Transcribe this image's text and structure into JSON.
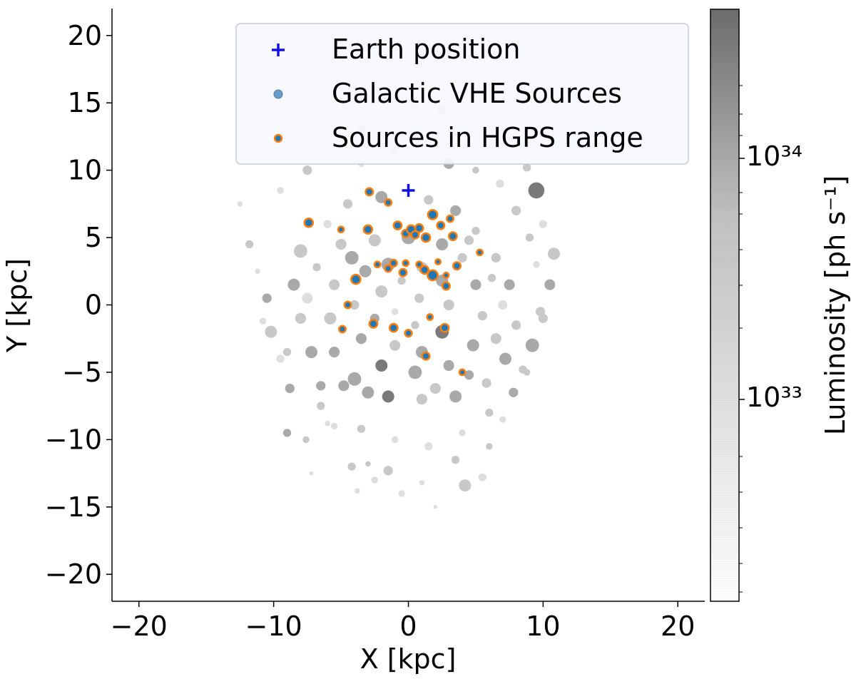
{
  "chart_data": {
    "type": "scatter",
    "xlabel": "X [kpc]",
    "ylabel": "Y [kpc]",
    "xlim": [
      -22,
      22
    ],
    "ylim": [
      -22,
      22
    ],
    "x_ticks": [
      -20,
      -10,
      0,
      10,
      20
    ],
    "y_ticks": [
      -20,
      -15,
      -10,
      -5,
      0,
      5,
      10,
      15,
      20
    ],
    "x_tick_labels": [
      "−20",
      "−10",
      "0",
      "10",
      "20"
    ],
    "y_tick_labels": [
      "−20",
      "−15",
      "−10",
      "−5",
      "0",
      "5",
      "10",
      "15",
      "20"
    ],
    "grid": false,
    "legend_position": "top-center",
    "legend": [
      {
        "label": "Earth position",
        "marker": "plus",
        "color": "#1010e0"
      },
      {
        "label": "Galactic VHE Sources",
        "marker": "circle",
        "color": "#6a9cc8"
      },
      {
        "label": "Sources in HGPS range",
        "marker": "circle-outlined",
        "color": "#1f77b4",
        "edge_color": "#ff7f0e"
      }
    ],
    "colorbar": {
      "label": "Luminosity [ph s⁻¹]",
      "scale": "log",
      "range": [
        2e+32,
        5e+34
      ],
      "tick_labels": [
        "10³³",
        "10³⁴"
      ],
      "colormap": "Greys"
    },
    "series": [
      {
        "name": "Earth position",
        "points": [
          [
            0,
            8.5
          ]
        ]
      },
      {
        "name": "Galactic VHE Sources",
        "points": [
          [
            -12.5,
            7.5,
            0.2,
            1
          ],
          [
            -11.8,
            4.5,
            0.3,
            2
          ],
          [
            -11.2,
            2.5,
            0.2,
            1
          ],
          [
            -10.5,
            0.5,
            0.35,
            3
          ],
          [
            -10.2,
            -2.0,
            0.45,
            2
          ],
          [
            -9.5,
            -4.0,
            0.3,
            1
          ],
          [
            -8.8,
            -6.2,
            0.35,
            3
          ],
          [
            -9.0,
            -9.5,
            0.3,
            3
          ],
          [
            -7.6,
            -10.0,
            0.25,
            2
          ],
          [
            -7.2,
            -12.5,
            0.15,
            1
          ],
          [
            -6.5,
            -7.5,
            0.3,
            2
          ],
          [
            -5.5,
            -9.0,
            0.25,
            1
          ],
          [
            -4.8,
            -6.0,
            0.4,
            3
          ],
          [
            -4.2,
            -12.0,
            0.3,
            2
          ],
          [
            -3.8,
            -13.8,
            0.2,
            1
          ],
          [
            -3.0,
            -11.8,
            0.2,
            2
          ],
          [
            -2.5,
            -13.0,
            0.25,
            1
          ],
          [
            -1.5,
            -12.3,
            0.35,
            2
          ],
          [
            -0.5,
            -14.0,
            0.25,
            1
          ],
          [
            1.0,
            -13.2,
            0.2,
            1
          ],
          [
            2.0,
            -15.0,
            0.15,
            1
          ],
          [
            3.5,
            -11.5,
            0.3,
            2
          ],
          [
            4.2,
            -13.4,
            0.45,
            2
          ],
          [
            5.5,
            -12.8,
            0.3,
            1
          ],
          [
            6.0,
            -10.5,
            0.25,
            2
          ],
          [
            7.0,
            -8.5,
            0.25,
            1
          ],
          [
            7.8,
            -6.5,
            0.35,
            3
          ],
          [
            8.5,
            -4.8,
            0.3,
            2
          ],
          [
            9.2,
            -3.0,
            0.5,
            3
          ],
          [
            10.0,
            -1.0,
            0.35,
            2
          ],
          [
            10.5,
            1.5,
            0.4,
            3
          ],
          [
            10.8,
            3.8,
            0.45,
            2
          ],
          [
            10.0,
            6.0,
            0.3,
            1
          ],
          [
            9.5,
            8.5,
            0.6,
            4
          ],
          [
            8.8,
            10.2,
            0.3,
            2
          ],
          [
            7.5,
            11.5,
            0.25,
            1
          ],
          [
            6.0,
            12.5,
            0.3,
            1
          ],
          [
            4.0,
            13.5,
            0.2,
            1
          ],
          [
            2.5,
            14.5,
            0.35,
            2
          ],
          [
            0.5,
            14.8,
            0.3,
            1
          ],
          [
            -1.5,
            14.2,
            0.25,
            1
          ],
          [
            -3.5,
            13.0,
            0.3,
            2
          ],
          [
            -5.5,
            11.5,
            0.2,
            1
          ],
          [
            -7.5,
            10.0,
            0.35,
            2
          ],
          [
            -9.5,
            8.5,
            0.25,
            1
          ],
          [
            -8.0,
            4.0,
            0.5,
            2
          ],
          [
            -8.5,
            1.5,
            0.45,
            3
          ],
          [
            -8.0,
            -1.0,
            0.4,
            2
          ],
          [
            -7.2,
            -3.5,
            0.45,
            3
          ],
          [
            -6.0,
            6.0,
            0.3,
            1
          ],
          [
            -4.5,
            7.5,
            0.35,
            2
          ],
          [
            -2.0,
            8.0,
            0.45,
            3
          ],
          [
            1.5,
            7.8,
            0.35,
            2
          ],
          [
            3.5,
            7.0,
            0.4,
            3
          ],
          [
            5.0,
            5.5,
            0.3,
            2
          ],
          [
            6.5,
            3.5,
            0.35,
            2
          ],
          [
            7.5,
            1.5,
            0.4,
            3
          ],
          [
            8.0,
            -1.5,
            0.35,
            2
          ],
          [
            7.2,
            -4.0,
            0.45,
            3
          ],
          [
            5.8,
            -5.8,
            0.35,
            2
          ],
          [
            3.5,
            -6.8,
            0.45,
            3
          ],
          [
            1.0,
            -7.0,
            0.4,
            2
          ],
          [
            -1.5,
            -6.8,
            0.45,
            4
          ],
          [
            -4.0,
            -5.5,
            0.5,
            3
          ],
          [
            -5.5,
            -3.5,
            0.4,
            3
          ],
          [
            -5.8,
            -1.0,
            0.45,
            2
          ],
          [
            -5.5,
            1.5,
            0.4,
            2
          ],
          [
            -4.2,
            3.5,
            0.5,
            3
          ],
          [
            -2.5,
            4.8,
            0.45,
            2
          ],
          [
            0.0,
            5.0,
            0.5,
            3
          ],
          [
            2.5,
            4.5,
            0.45,
            3
          ],
          [
            4.0,
            3.5,
            0.35,
            2
          ],
          [
            5.0,
            1.5,
            0.4,
            3
          ],
          [
            5.5,
            -0.8,
            0.35,
            2
          ],
          [
            4.8,
            -3.0,
            0.45,
            3
          ],
          [
            3.0,
            -4.5,
            0.4,
            3
          ],
          [
            0.5,
            -5.0,
            0.5,
            3
          ],
          [
            -2.0,
            -4.5,
            0.45,
            4
          ],
          [
            -3.5,
            -2.5,
            0.4,
            3
          ],
          [
            -4.0,
            0.0,
            0.35,
            2
          ],
          [
            -3.2,
            2.5,
            0.45,
            3
          ],
          [
            -1.5,
            3.0,
            0.5,
            3
          ],
          [
            1.0,
            2.8,
            0.4,
            2
          ],
          [
            2.5,
            1.8,
            0.45,
            3
          ],
          [
            3.0,
            0.0,
            0.4,
            2
          ],
          [
            2.5,
            -2.0,
            0.5,
            4
          ],
          [
            1.0,
            -3.5,
            0.45,
            3
          ],
          [
            -1.0,
            -3.0,
            0.4,
            2
          ],
          [
            -2.5,
            -1.0,
            0.35,
            3
          ],
          [
            -2.0,
            1.0,
            0.45,
            2
          ],
          [
            -0.5,
            1.8,
            0.3,
            2
          ],
          [
            0.8,
            0.5,
            0.35,
            2
          ],
          [
            0.5,
            -1.5,
            0.3,
            2
          ],
          [
            -1.0,
            -0.5,
            0.25,
            1
          ],
          [
            -6.5,
            -6.0,
            0.35,
            3
          ],
          [
            -5.0,
            4.5,
            0.4,
            2
          ],
          [
            -3.0,
            -6.5,
            0.45,
            3
          ],
          [
            2.0,
            -6.2,
            0.4,
            2
          ],
          [
            4.5,
            -5.2,
            0.35,
            3
          ],
          [
            6.5,
            -2.5,
            0.4,
            2
          ],
          [
            7.0,
            0.0,
            0.35,
            1
          ],
          [
            6.2,
            2.0,
            0.3,
            2
          ],
          [
            4.5,
            4.8,
            0.35,
            2
          ],
          [
            -6.8,
            2.8,
            0.3,
            2
          ],
          [
            -7.5,
            0.5,
            0.4,
            1
          ],
          [
            -9.0,
            -3.5,
            0.3,
            2
          ],
          [
            -10.8,
            -1.2,
            0.25,
            1
          ],
          [
            -3.5,
            10.5,
            0.25,
            1
          ],
          [
            -1.0,
            11.5,
            0.3,
            2
          ],
          [
            1.5,
            12.0,
            0.35,
            1
          ],
          [
            3.0,
            10.5,
            0.4,
            3
          ],
          [
            5.0,
            10.0,
            0.25,
            2
          ],
          [
            6.8,
            9.0,
            0.3,
            1
          ],
          [
            8.0,
            7.0,
            0.35,
            2
          ],
          [
            9.0,
            5.0,
            0.3,
            2
          ],
          [
            9.5,
            3.0,
            0.25,
            1
          ],
          [
            9.8,
            -0.5,
            0.35,
            2
          ],
          [
            9.2,
            -2.8,
            0.3,
            3
          ],
          [
            8.8,
            -5.0,
            0.25,
            2
          ],
          [
            6.0,
            -8.0,
            0.3,
            2
          ],
          [
            4.0,
            -9.5,
            0.25,
            1
          ],
          [
            1.5,
            -10.5,
            0.3,
            1
          ],
          [
            -1.0,
            -10.0,
            0.25,
            1
          ],
          [
            -3.5,
            -9.2,
            0.3,
            2
          ],
          [
            -6.0,
            -8.8,
            0.2,
            1
          ]
        ]
      },
      {
        "name": "Sources in HGPS range",
        "points": [
          [
            -7.4,
            6.1,
            0.32
          ],
          [
            -3.0,
            5.6,
            0.32
          ],
          [
            -2.9,
            8.4,
            0.28
          ],
          [
            -1.5,
            7.6,
            0.25
          ],
          [
            -0.8,
            5.9,
            0.3
          ],
          [
            -0.2,
            5.3,
            0.28
          ],
          [
            0.2,
            5.6,
            0.32
          ],
          [
            0.5,
            5.2,
            0.28
          ],
          [
            0.8,
            5.7,
            0.3
          ],
          [
            1.3,
            5.0,
            0.32
          ],
          [
            1.8,
            6.7,
            0.35
          ],
          [
            2.4,
            5.9,
            0.28
          ],
          [
            3.3,
            5.1,
            0.3
          ],
          [
            3.1,
            6.4,
            0.25
          ],
          [
            3.6,
            2.9,
            0.28
          ],
          [
            5.3,
            3.9,
            0.22
          ],
          [
            2.8,
            1.4,
            0.28
          ],
          [
            1.8,
            2.2,
            0.38
          ],
          [
            1.2,
            2.6,
            0.3
          ],
          [
            -1.1,
            3.1,
            0.26
          ],
          [
            -3.9,
            1.9,
            0.35
          ],
          [
            -4.5,
            0.0,
            0.25
          ],
          [
            -4.9,
            -1.8,
            0.25
          ],
          [
            -2.6,
            -1.4,
            0.3
          ],
          [
            -1.1,
            -1.7,
            0.3
          ],
          [
            0.0,
            -2.1,
            0.26
          ],
          [
            1.6,
            -0.9,
            0.22
          ],
          [
            2.7,
            -1.7,
            0.3
          ],
          [
            1.3,
            -3.8,
            0.28
          ],
          [
            4.0,
            -5.0,
            0.22
          ],
          [
            -5.0,
            5.6,
            0.22
          ],
          [
            -0.4,
            2.4,
            0.28
          ],
          [
            0.8,
            3.0,
            0.22
          ],
          [
            -2.3,
            3.0,
            0.22
          ],
          [
            -1.5,
            2.7,
            0.25
          ],
          [
            2.2,
            3.2,
            0.2
          ],
          [
            -0.2,
            3.1,
            0.22
          ],
          [
            2.8,
            2.2,
            0.2
          ]
        ]
      }
    ]
  }
}
